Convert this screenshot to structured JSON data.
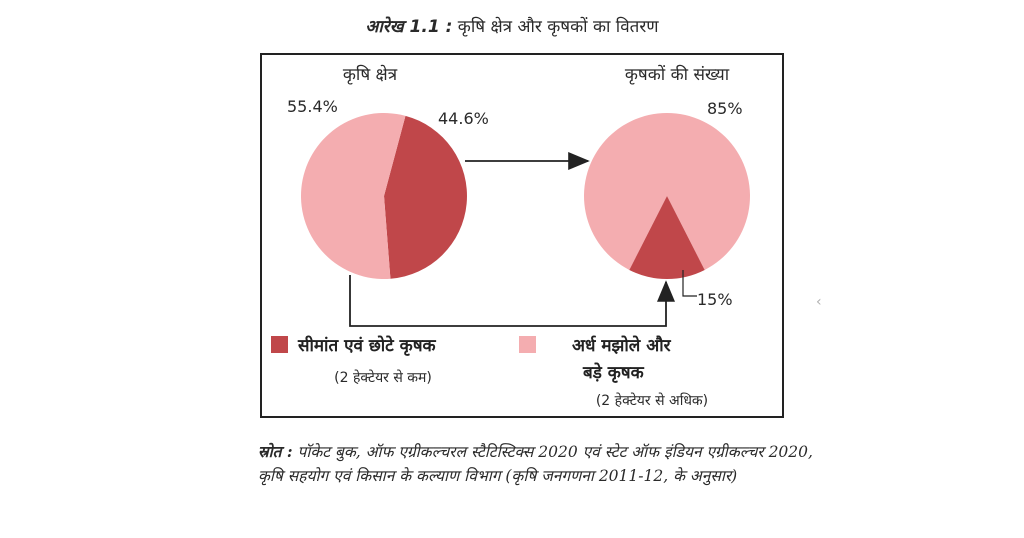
{
  "figure": {
    "number": "आरेख 1.1 :",
    "title": "कृषि क्षेत्र और कृषकों का वितरण"
  },
  "chart_data": [
    {
      "type": "pie",
      "title": "कृषि क्षेत्र",
      "slices": [
        {
          "label": "सीमांत एवं छोटे कृषक",
          "value": 44.6,
          "value_label": "44.6%",
          "color": "#c0474a"
        },
        {
          "label": "अर्ध मझोले और बड़े कृषक",
          "value": 55.4,
          "value_label": "55.4%",
          "color": "#f4adb0"
        }
      ]
    },
    {
      "type": "pie",
      "title": "कृषकों की संख्या",
      "slices": [
        {
          "label": "सीमांत एवं छोटे कृषक",
          "value": 85,
          "value_label": "85%",
          "color": "#f4adb0"
        },
        {
          "label": "अर्ध मझोले और बड़े कृषक",
          "value": 15,
          "value_label": "15%",
          "color": "#c0474a"
        }
      ]
    }
  ],
  "legend": [
    {
      "label": "सीमांत एवं छोटे कृषक",
      "sublabel": "(2 हेक्टेयर से कम)",
      "color": "#c0474a"
    },
    {
      "label_line1": "अर्ध मझोले और",
      "label_line2": "बड़े कृषक",
      "sublabel": "(2 हेक्टेयर से अधिक)",
      "color": "#f4adb0"
    }
  ],
  "source": {
    "label": "स्रोत :",
    "text": "पॉकेट बुक, ऑफ एग्रीकल्चरल स्टैटिस्टिक्स 2020 एवं स्टेट ऑफ इंडियन एग्रीकल्चर 2020, कृषि सहयोग एवं किसान के कल्याण विभाग (कृषि जनगणना 2011-12, के अनुसार)"
  },
  "side_glyph": "‹"
}
